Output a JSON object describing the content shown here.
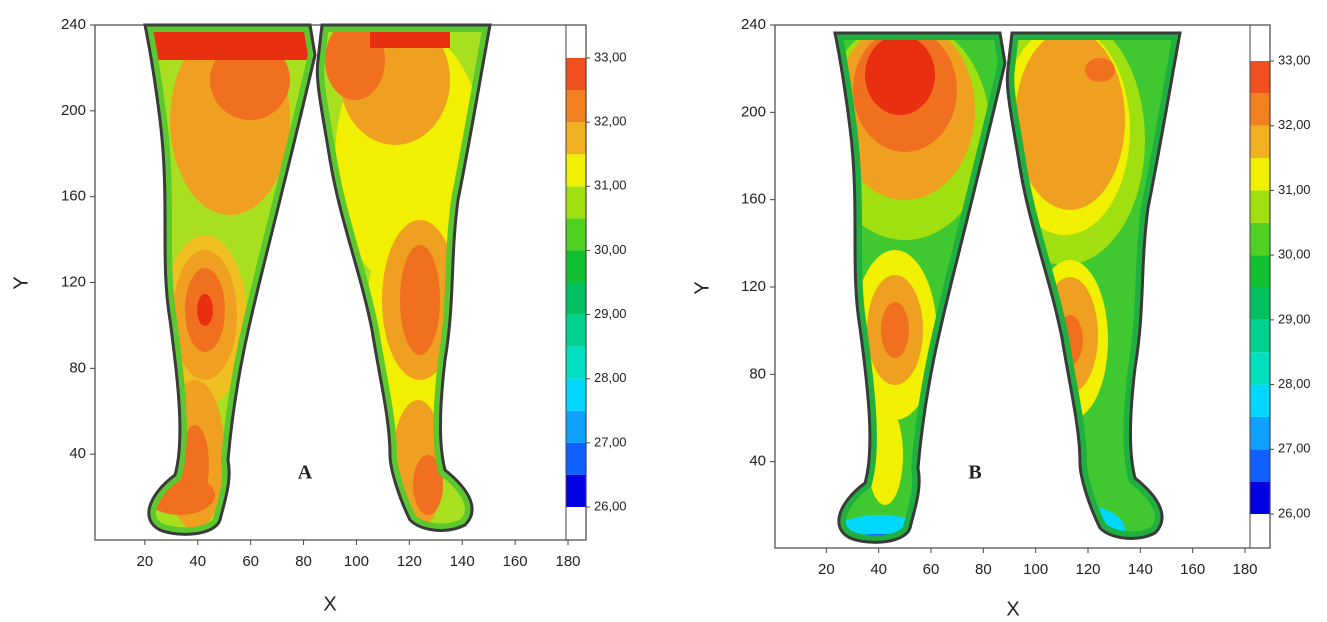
{
  "chart_data": [
    {
      "type": "contour",
      "panel_label": "A",
      "xlabel": "X",
      "ylabel": "Y",
      "xlim": [
        0,
        180
      ],
      "ylim": [
        0,
        240
      ],
      "xticks": [
        20,
        40,
        60,
        80,
        100,
        120,
        140,
        160,
        180
      ],
      "yticks": [
        40,
        80,
        120,
        160,
        200,
        240
      ],
      "colorbar": {
        "levels": [
          26,
          26.5,
          27,
          27.5,
          28,
          28.5,
          29,
          29.5,
          30,
          30.5,
          31,
          31.5,
          32,
          32.5,
          33
        ],
        "colors": [
          "#0000e0",
          "#1060ff",
          "#10a0ff",
          "#00d8ff",
          "#00e0c0",
          "#00d090",
          "#00c060",
          "#10c030",
          "#50d020",
          "#a0e010",
          "#f0f000",
          "#f0b020",
          "#f08020",
          "#f05020"
        ],
        "ticks": [
          {
            "value": 26,
            "label": "26,00"
          },
          {
            "value": 27,
            "label": "27,00"
          },
          {
            "value": 28,
            "label": "28,00"
          },
          {
            "value": 29,
            "label": "29,00"
          },
          {
            "value": 30,
            "label": "30,00"
          },
          {
            "value": 31,
            "label": "31,00"
          },
          {
            "value": 32,
            "label": "32,00"
          },
          {
            "value": 33,
            "label": "33,00"
          }
        ]
      }
    },
    {
      "type": "contour",
      "panel_label": "B",
      "xlabel": "X",
      "ylabel": "Y",
      "xlim": [
        0,
        180
      ],
      "ylim": [
        0,
        240
      ],
      "xticks": [
        20,
        40,
        60,
        80,
        100,
        120,
        140,
        160,
        180
      ],
      "yticks": [
        40,
        80,
        120,
        160,
        200,
        240
      ],
      "colorbar": {
        "levels": [
          26,
          26.5,
          27,
          27.5,
          28,
          28.5,
          29,
          29.5,
          30,
          30.5,
          31,
          31.5,
          32,
          32.5,
          33
        ],
        "colors": [
          "#0000e0",
          "#1060ff",
          "#10a0ff",
          "#00d8ff",
          "#00e0c0",
          "#00d090",
          "#00c060",
          "#10c030",
          "#50d020",
          "#a0e010",
          "#f0f000",
          "#f0b020",
          "#f08020",
          "#f05020"
        ],
        "ticks": [
          {
            "value": 26,
            "label": "26,00"
          },
          {
            "value": 27,
            "label": "27,00"
          },
          {
            "value": 28,
            "label": "28,00"
          },
          {
            "value": 29,
            "label": "29,00"
          },
          {
            "value": 30,
            "label": "30,00"
          },
          {
            "value": 31,
            "label": "31,00"
          },
          {
            "value": 32,
            "label": "32,00"
          },
          {
            "value": 33,
            "label": "33,00"
          }
        ]
      }
    }
  ]
}
